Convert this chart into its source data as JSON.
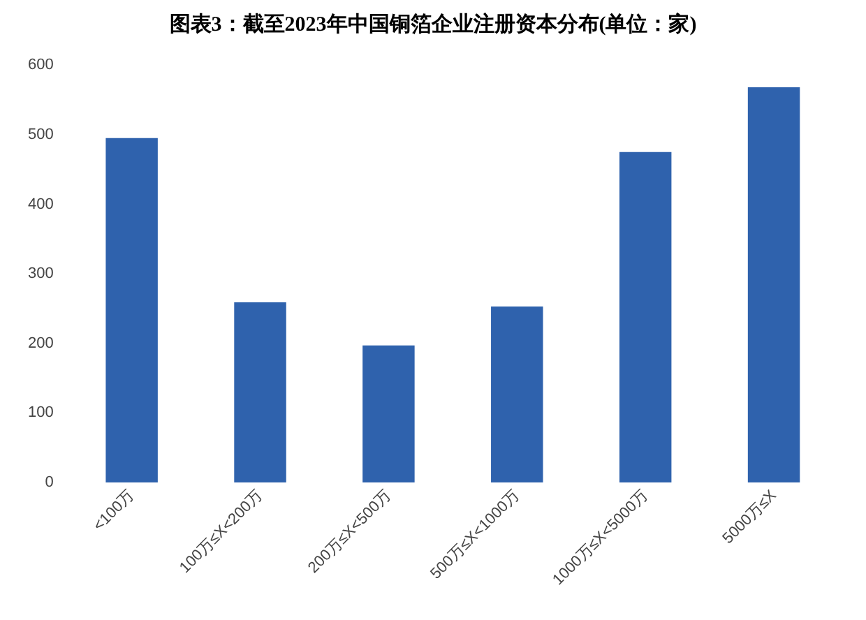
{
  "chart_data": {
    "type": "bar",
    "title": "图表3：截至2023年中国铜箔企业注册资本分布(单位：家)",
    "categories": [
      "<100万",
      "100万≤X<200万",
      "200万≤X<500万",
      "500万≤X<1000万",
      "1000万≤X<5000万",
      "5000万≤X"
    ],
    "values": [
      495,
      259,
      197,
      253,
      475,
      568
    ],
    "color": "#2f62ad",
    "ylim": [
      0,
      600
    ],
    "yticks": [
      0,
      100,
      200,
      300,
      400,
      500,
      600
    ],
    "grid": false
  }
}
